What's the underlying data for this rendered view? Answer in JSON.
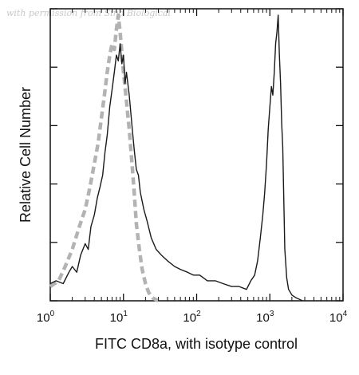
{
  "watermark": "with permission from Sino Biological",
  "chart_data": {
    "type": "line",
    "title": "",
    "xlabel": "FITC CD8a, with isotype control",
    "ylabel": "Relative Cell Number",
    "xscale": "log",
    "xlim": [
      1,
      10000
    ],
    "ylim": [
      0,
      100
    ],
    "grid": false,
    "x_ticks": [
      {
        "value": 1,
        "base": "10",
        "exp": "0"
      },
      {
        "value": 10,
        "base": "10",
        "exp": "1"
      },
      {
        "value": 100,
        "base": "10",
        "exp": "2"
      },
      {
        "value": 1000,
        "base": "10",
        "exp": "3"
      },
      {
        "value": 10000,
        "base": "10",
        "exp": "4"
      }
    ],
    "series": [
      {
        "style": "dashed",
        "color": "#b3b3b3",
        "points": [
          [
            1,
            5
          ],
          [
            1.3,
            7
          ],
          [
            1.6,
            12
          ],
          [
            2.0,
            18
          ],
          [
            2.5,
            26
          ],
          [
            3.0,
            32
          ],
          [
            3.5,
            40
          ],
          [
            4.0,
            48
          ],
          [
            4.5,
            55
          ],
          [
            5.0,
            64
          ],
          [
            5.5,
            72
          ],
          [
            6.0,
            80
          ],
          [
            6.5,
            86
          ],
          [
            7.0,
            90
          ],
          [
            7.5,
            88
          ],
          [
            8.0,
            95
          ],
          [
            8.5,
            100
          ],
          [
            9.0,
            94
          ],
          [
            9.5,
            87
          ],
          [
            10.0,
            80
          ],
          [
            11.0,
            70
          ],
          [
            12.0,
            60
          ],
          [
            13.0,
            49
          ],
          [
            14.0,
            38
          ],
          [
            15.0,
            27
          ],
          [
            16.5,
            18
          ],
          [
            18.0,
            11
          ],
          [
            20.0,
            6
          ],
          [
            22.0,
            3
          ],
          [
            25.0,
            1
          ],
          [
            30.0,
            0
          ]
        ]
      },
      {
        "style": "solid",
        "color": "#1a1a1a",
        "points": [
          [
            1,
            6
          ],
          [
            1.2,
            7
          ],
          [
            1.5,
            6
          ],
          [
            1.8,
            10
          ],
          [
            2.0,
            12
          ],
          [
            2.3,
            10
          ],
          [
            2.6,
            16
          ],
          [
            3.0,
            20
          ],
          [
            3.3,
            18
          ],
          [
            3.6,
            26
          ],
          [
            4.0,
            30
          ],
          [
            4.4,
            36
          ],
          [
            4.8,
            40
          ],
          [
            5.2,
            44
          ],
          [
            5.6,
            52
          ],
          [
            6.0,
            58
          ],
          [
            6.5,
            68
          ],
          [
            7.0,
            74
          ],
          [
            7.5,
            80
          ],
          [
            8.0,
            86
          ],
          [
            8.5,
            84
          ],
          [
            9.0,
            90
          ],
          [
            9.5,
            83
          ],
          [
            10.0,
            86
          ],
          [
            10.5,
            76
          ],
          [
            11.0,
            80
          ],
          [
            12.0,
            72
          ],
          [
            13.0,
            62
          ],
          [
            14.0,
            53
          ],
          [
            15.0,
            46
          ],
          [
            16.0,
            44
          ],
          [
            17.0,
            38
          ],
          [
            19.0,
            32
          ],
          [
            21.0,
            28
          ],
          [
            24.0,
            22
          ],
          [
            28.0,
            18
          ],
          [
            33.0,
            16
          ],
          [
            40.0,
            14
          ],
          [
            50.0,
            12
          ],
          [
            60.0,
            11
          ],
          [
            75.0,
            10
          ],
          [
            90.0,
            9
          ],
          [
            110.0,
            9
          ],
          [
            140.0,
            7
          ],
          [
            180.0,
            7
          ],
          [
            230.0,
            6
          ],
          [
            300.0,
            5
          ],
          [
            380.0,
            5
          ],
          [
            480.0,
            4
          ],
          [
            550.0,
            7
          ],
          [
            620.0,
            9
          ],
          [
            680.0,
            14
          ],
          [
            740.0,
            22
          ],
          [
            800.0,
            30
          ],
          [
            850.0,
            38
          ],
          [
            900.0,
            48
          ],
          [
            950.0,
            60
          ],
          [
            1000.0,
            68
          ],
          [
            1050.0,
            75
          ],
          [
            1100.0,
            72
          ],
          [
            1150.0,
            80
          ],
          [
            1200.0,
            90
          ],
          [
            1250.0,
            94
          ],
          [
            1300.0,
            100
          ],
          [
            1350.0,
            86
          ],
          [
            1400.0,
            76
          ],
          [
            1450.0,
            62
          ],
          [
            1500.0,
            54
          ],
          [
            1550.0,
            36
          ],
          [
            1600.0,
            18
          ],
          [
            1700.0,
            8
          ],
          [
            1800.0,
            4
          ],
          [
            2000.0,
            2
          ],
          [
            2300.0,
            1
          ],
          [
            2800.0,
            0
          ]
        ]
      }
    ]
  }
}
